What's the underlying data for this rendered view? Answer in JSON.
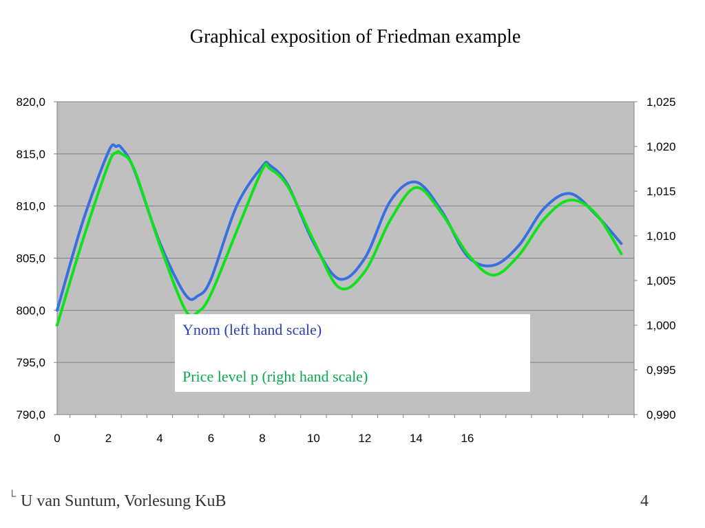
{
  "slide": {
    "title": "Graphical exposition of Friedman example",
    "footer": "U van Suntum, Vorlesung KuB",
    "footer_mark": "└",
    "page_number": "4"
  },
  "chart_data": {
    "type": "line",
    "title": "",
    "xlabel": "",
    "ylabel": "",
    "x_tick_labels": [
      "0",
      "2",
      "4",
      "6",
      "8",
      "10",
      "12",
      "14",
      "16"
    ],
    "x_range": [
      0,
      22.5
    ],
    "y_left_range": [
      790,
      820
    ],
    "y_left_ticks": [
      "790,0",
      "795,0",
      "800,0",
      "805,0",
      "810,0",
      "815,0",
      "820,0"
    ],
    "y_right_range": [
      0.99,
      1.025
    ],
    "y_right_ticks": [
      "0,990",
      "0,995",
      "1,000",
      "1,005",
      "1,010",
      "1,015",
      "1,020",
      "1,025"
    ],
    "grid": "horizontal",
    "plot_background": "#c0c0c0",
    "legend_placement": "center-bottom",
    "series": [
      {
        "name": "Ynom (left hand scale)",
        "axis": "left",
        "color": "#3a6fe0",
        "x": [
          0,
          1,
          2,
          2.3,
          2.5,
          3,
          4,
          5,
          5.5,
          6,
          7,
          8,
          8.3,
          9,
          10,
          11,
          12,
          13,
          14,
          15,
          16,
          17,
          18,
          19,
          20,
          21,
          22
        ],
        "y": [
          800.0,
          808.5,
          815.2,
          815.7,
          815.6,
          813.5,
          806.5,
          801.5,
          801.4,
          803.0,
          810.0,
          813.8,
          813.9,
          812.0,
          806.5,
          803.0,
          805.0,
          810.5,
          812.3,
          809.5,
          805.2,
          804.3,
          806.2,
          809.8,
          811.2,
          809.2,
          806.4
        ]
      },
      {
        "name": "Price level p (right hand scale)",
        "axis": "right",
        "color": "#11e11c",
        "x": [
          0,
          1,
          2,
          2.3,
          2.5,
          3,
          4,
          5,
          5.5,
          6,
          7,
          8,
          8.3,
          9,
          10,
          11,
          12,
          13,
          14,
          15,
          16,
          17,
          18,
          19,
          20,
          21,
          22
        ],
        "y": [
          1.0,
          1.0095,
          1.018,
          1.0193,
          1.0192,
          1.0175,
          1.009,
          1.0017,
          1.0015,
          1.0035,
          1.0105,
          1.0174,
          1.0175,
          1.0155,
          1.0095,
          1.0042,
          1.006,
          1.0118,
          1.0154,
          1.0125,
          1.008,
          1.0056,
          1.0078,
          1.0119,
          1.014,
          1.0125,
          1.008
        ]
      }
    ]
  }
}
